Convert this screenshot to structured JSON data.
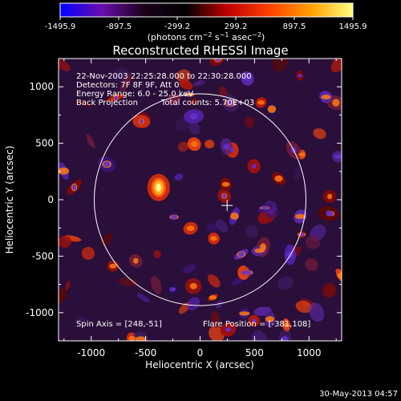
{
  "chart_data": {
    "type": "heatmap",
    "title": "Reconstructed RHESSI Image",
    "xlabel": "Heliocentric X (arcsec)",
    "ylabel": "Heliocentric Y (arcsec)",
    "xlim": [
      -1300,
      1300
    ],
    "ylim": [
      -1250,
      1250
    ],
    "xticks": [
      "-1000",
      "-500",
      "0",
      "500",
      "1000"
    ],
    "xtick_values": [
      -1000,
      -500,
      0,
      500,
      1000
    ],
    "yticks": [
      "1000",
      "500",
      "0",
      "-500",
      "-1000"
    ],
    "ytick_values": [
      1000,
      500,
      0,
      -500,
      -1000
    ],
    "colorbar": {
      "ticks": [
        "-1495.9",
        "-897.5",
        "-299.2",
        "299.2",
        "897.5",
        "1495.9"
      ],
      "tick_values": [
        -1495.9,
        -897.5,
        -299.2,
        299.2,
        897.5,
        1495.9
      ],
      "range": [
        -1495.9,
        1495.9
      ],
      "colormap": [
        "#0000ff",
        "#6a0dad",
        "#1a001a",
        "#000000",
        "#c00000",
        "#ff4000",
        "#ffa000",
        "#ffff80"
      ]
    },
    "annotations": {
      "line1": "22-Nov-2003 22:25:28.000 to 22:30:28.000",
      "line2": "Detectors: 7F 8F 9F, Att 0",
      "line3": "Energy Range: 6.0 - 25.0 keV",
      "line4a": "Back Projection",
      "line4b": "Total counts: 5.70E+03",
      "spin_axis": "Spin Axis = [248,-51]",
      "flare_position": "Flare Position = [-381,108]"
    },
    "solar_limb_radius_arcsec": 972,
    "spin_axis_xy": [
      248,
      -51
    ],
    "flare_source_xy": [
      -381,
      108
    ]
  },
  "units_label": {
    "prefix": "(photons cm",
    "sup1": "−2",
    "mid1": " s",
    "sup2": "−1",
    "mid2": " asec",
    "sup3": "−2",
    "suffix": ")"
  },
  "footer_date": "30-May-2013 04:57"
}
